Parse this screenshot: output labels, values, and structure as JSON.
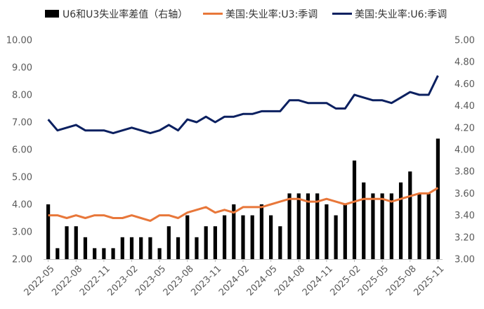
{
  "chart_data": {
    "type": "bar+line",
    "legend_position": "top",
    "grid": false,
    "categories": [
      "2022-05",
      "2022-06",
      "2022-07",
      "2022-08",
      "2022-09",
      "2022-10",
      "2022-11",
      "2022-12",
      "2023-01",
      "2023-02",
      "2023-03",
      "2023-04",
      "2023-05",
      "2023-06",
      "2023-07",
      "2023-08",
      "2023-09",
      "2023-10",
      "2023-11",
      "2023-12",
      "2024-01",
      "2024-02",
      "2024-03",
      "2024-04",
      "2024-05",
      "2024-06",
      "2024-07",
      "2024-08",
      "2024-09",
      "2024-10",
      "2024-11",
      "2024-12",
      "2025-01",
      "2025-02",
      "2025-03",
      "2025-04",
      "2025-05",
      "2025-06",
      "2025-07",
      "2025-08",
      "2025-09",
      "2025-10",
      "2025-11"
    ],
    "x_tick_labels": [
      "2022-05",
      "2022-08",
      "2022-11",
      "2023-02",
      "2023-05",
      "2023-08",
      "2023-11",
      "2024-02",
      "2024-05",
      "2024-08",
      "2024-11",
      "2025-02",
      "2025-05",
      "2025-08",
      "2025-11"
    ],
    "y_left": {
      "ylim": [
        2.0,
        10.0
      ],
      "ticks": [
        "2.00",
        "3.00",
        "4.00",
        "5.00",
        "6.00",
        "7.00",
        "8.00",
        "9.00",
        "10.00"
      ]
    },
    "y_right": {
      "ylim": [
        3.0,
        5.0
      ],
      "ticks": [
        "3.00",
        "3.20",
        "3.40",
        "3.60",
        "3.80",
        "4.00",
        "4.20",
        "4.40",
        "4.60",
        "4.80",
        "5.00"
      ]
    },
    "series": [
      {
        "name": "U6和U3失业率差值（右轴）",
        "kind": "bar",
        "axis": "right",
        "color": "#000000",
        "values": [
          3.5,
          3.1,
          3.3,
          3.3,
          3.2,
          3.1,
          3.1,
          3.1,
          3.2,
          3.2,
          3.2,
          3.2,
          3.1,
          3.3,
          3.2,
          3.4,
          3.2,
          3.3,
          3.3,
          3.4,
          3.5,
          3.4,
          3.4,
          3.5,
          3.4,
          3.3,
          3.6,
          3.6,
          3.6,
          3.6,
          3.5,
          3.4,
          3.5,
          3.9,
          3.7,
          3.6,
          3.6,
          3.6,
          3.7,
          3.8,
          3.6,
          3.6,
          4.1
        ]
      },
      {
        "name": "美国:失业率:U3:季调",
        "kind": "line",
        "axis": "left",
        "color": "#E8773A",
        "values": [
          3.6,
          3.6,
          3.5,
          3.6,
          3.5,
          3.6,
          3.6,
          3.5,
          3.5,
          3.6,
          3.5,
          3.4,
          3.6,
          3.6,
          3.5,
          3.7,
          3.8,
          3.9,
          3.7,
          3.8,
          3.7,
          3.9,
          3.9,
          3.9,
          4.0,
          4.1,
          4.2,
          4.2,
          4.1,
          4.1,
          4.2,
          4.1,
          4.0,
          4.1,
          4.2,
          4.2,
          4.2,
          4.1,
          4.2,
          4.3,
          4.4,
          4.4,
          4.6
        ]
      },
      {
        "name": "美国:失业率:U6:季调",
        "kind": "line",
        "axis": "left",
        "color": "#0B2060",
        "values": [
          7.1,
          6.7,
          6.8,
          6.9,
          6.7,
          6.7,
          6.7,
          6.6,
          6.7,
          6.8,
          6.7,
          6.6,
          6.7,
          6.9,
          6.7,
          7.1,
          7.0,
          7.2,
          7.0,
          7.2,
          7.2,
          7.3,
          7.3,
          7.4,
          7.4,
          7.4,
          7.8,
          7.8,
          7.7,
          7.7,
          7.7,
          7.5,
          7.5,
          8.0,
          7.9,
          7.8,
          7.8,
          7.7,
          7.9,
          8.1,
          8.0,
          8.0,
          8.7
        ]
      }
    ]
  }
}
